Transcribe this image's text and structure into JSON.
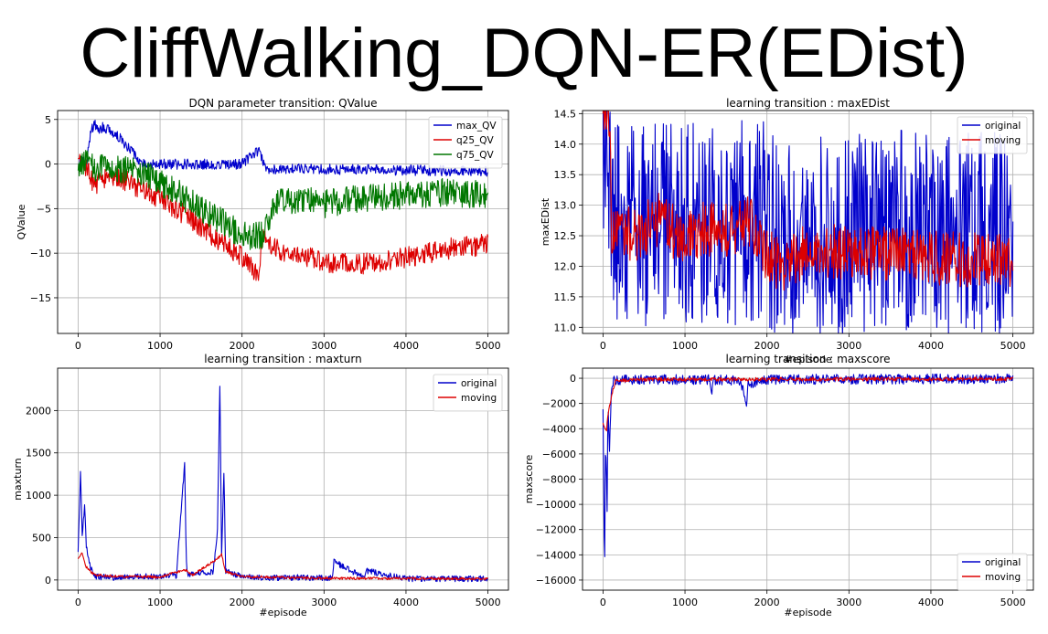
{
  "page": {
    "title": "CliffWalking_DQN-ER(EDist)"
  },
  "chart_data": [
    {
      "type": "line",
      "title": "DQN parameter transition: QValue",
      "xlabel": "#episode",
      "ylabel": "QValue",
      "xlim": [
        -250,
        5250
      ],
      "ylim": [
        -19,
        6
      ],
      "xticks": [
        0,
        1000,
        2000,
        3000,
        4000,
        5000
      ],
      "yticks": [
        5,
        0,
        -5,
        -10,
        -15
      ],
      "ytick_labels": [
        "5",
        "0",
        "−5",
        "−10",
        "−15"
      ],
      "grid": true,
      "legend_position": "top-right",
      "series": [
        {
          "name": "max_QV",
          "color": "#0000cc",
          "x": [
            0,
            50,
            100,
            150,
            200,
            250,
            300,
            400,
            500,
            600,
            700,
            750,
            800,
            1000,
            1500,
            2000,
            2200,
            2250,
            2300,
            3000,
            4000,
            5000
          ],
          "y": [
            0,
            0.4,
            0,
            3.5,
            4.5,
            3.8,
            4.2,
            3.6,
            3.0,
            2.0,
            1.0,
            0.5,
            0,
            0,
            0,
            0,
            1.5,
            0.3,
            -0.5,
            -0.6,
            -0.7,
            -0.8
          ],
          "noise": 0.6
        },
        {
          "name": "q25_QV",
          "color": "#dd0000",
          "x": [
            0,
            100,
            200,
            300,
            500,
            700,
            1000,
            1500,
            2000,
            2200,
            2250,
            2400,
            3000,
            3500,
            4000,
            4500,
            5000
          ],
          "y": [
            0,
            -0.5,
            -2.5,
            -1.5,
            -1.5,
            -2.5,
            -3.8,
            -7.0,
            -10.5,
            -12.5,
            -8.5,
            -9.5,
            -11.0,
            -11.2,
            -10.5,
            -9.5,
            -9.0
          ],
          "noise": 1.2
        },
        {
          "name": "q75_QV",
          "color": "#007700",
          "x": [
            0,
            100,
            200,
            400,
            700,
            1000,
            1500,
            2000,
            2250,
            2400,
            2700,
            3000,
            3500,
            4000,
            4500,
            5000
          ],
          "y": [
            0,
            0.2,
            -0.5,
            -0.5,
            -0.8,
            -2.0,
            -5.0,
            -8.0,
            -8.0,
            -4.5,
            -4.0,
            -4.5,
            -3.8,
            -3.5,
            -3.2,
            -3.5
          ],
          "noise": 1.6
        }
      ]
    },
    {
      "type": "line",
      "title": "learning transition : maxEDist",
      "xlabel": "#episode",
      "ylabel": "maxEDist",
      "xlim": [
        -250,
        5250
      ],
      "ylim": [
        10.9,
        14.55
      ],
      "xticks": [
        0,
        1000,
        2000,
        3000,
        4000,
        5000
      ],
      "yticks": [
        14.5,
        14.0,
        13.5,
        13.0,
        12.5,
        12.0,
        11.5,
        11.0
      ],
      "ytick_labels": [
        "14.5",
        "14.0",
        "13.5",
        "13.0",
        "12.5",
        "12.0",
        "11.5",
        "11.0"
      ],
      "grid": true,
      "legend_position": "top-right",
      "series": [
        {
          "name": "original",
          "color": "#0000cc",
          "x": [
            0,
            100,
            500,
            1000,
            1500,
            2000,
            2100,
            2250,
            2600,
            3000,
            3500,
            4000,
            4500,
            5000
          ],
          "y": [
            14.4,
            12.7,
            12.7,
            12.7,
            12.7,
            12.7,
            12.6,
            12.5,
            12.5,
            12.5,
            12.6,
            12.5,
            12.5,
            12.5
          ],
          "noise": 1.7
        },
        {
          "name": "moving",
          "color": "#dd0000",
          "x": [
            0,
            90,
            100,
            200,
            400,
            700,
            900,
            1200,
            1500,
            1800,
            2000,
            2200,
            2500,
            3000,
            3500,
            4000,
            4500,
            5000
          ],
          "y": [
            14.4,
            14.4,
            12.4,
            12.6,
            12.5,
            12.8,
            12.5,
            12.6,
            12.6,
            12.7,
            12.2,
            12.0,
            12.3,
            12.2,
            12.2,
            12.15,
            12.1,
            12.1
          ],
          "noise": 0.45
        }
      ]
    },
    {
      "type": "line",
      "title": "learning transition : maxturn",
      "xlabel": "#episode",
      "ylabel": "maxturn",
      "xlim": [
        -250,
        5250
      ],
      "ylim": [
        -120,
        2500
      ],
      "xticks": [
        0,
        1000,
        2000,
        3000,
        4000,
        5000
      ],
      "yticks": [
        2000,
        1500,
        1000,
        500,
        0
      ],
      "ytick_labels": [
        "2000",
        "1500",
        "1000",
        "500",
        "0"
      ],
      "grid": true,
      "legend_position": "top-right",
      "series": [
        {
          "name": "original",
          "color": "#0000cc",
          "x": [
            0,
            30,
            50,
            80,
            100,
            150,
            200,
            400,
            800,
            1200,
            1300,
            1320,
            1340,
            1500,
            1650,
            1700,
            1730,
            1750,
            1780,
            1800,
            2000,
            2300,
            2600,
            3100,
            3120,
            3500,
            3520,
            4000,
            5000
          ],
          "y": [
            300,
            1310,
            500,
            900,
            400,
            150,
            40,
            30,
            40,
            50,
            1390,
            200,
            60,
            80,
            100,
            600,
            2380,
            300,
            1300,
            100,
            40,
            20,
            30,
            20,
            220,
            20,
            110,
            15,
            15
          ],
          "noise": 35
        },
        {
          "name": "moving",
          "color": "#dd0000",
          "x": [
            0,
            50,
            100,
            200,
            500,
            1000,
            1300,
            1400,
            1700,
            1750,
            1800,
            2000,
            3000,
            5000
          ],
          "y": [
            250,
            320,
            150,
            60,
            40,
            35,
            120,
            60,
            250,
            300,
            100,
            40,
            20,
            15
          ],
          "noise": 15
        }
      ]
    },
    {
      "type": "line",
      "title": "learning transition : maxscore",
      "xlabel": "#episode",
      "ylabel": "maxscore",
      "xlim": [
        -250,
        5250
      ],
      "ylim": [
        -16800,
        800
      ],
      "xticks": [
        0,
        1000,
        2000,
        3000,
        4000,
        5000
      ],
      "yticks": [
        0,
        -2000,
        -4000,
        -6000,
        -8000,
        -10000,
        -12000,
        -14000,
        -16000
      ],
      "ytick_labels": [
        "0",
        "−2000",
        "−4000",
        "−6000",
        "−8000",
        "−10000",
        "−12000",
        "−14000",
        "−16000"
      ],
      "grid": true,
      "legend_position": "bottom-right",
      "series": [
        {
          "name": "original",
          "color": "#0000cc",
          "x": [
            0,
            20,
            30,
            50,
            60,
            80,
            100,
            120,
            150,
            500,
            1000,
            1300,
            1320,
            1350,
            1600,
            1700,
            1750,
            1770,
            1800,
            2000,
            3000,
            4000,
            5000
          ],
          "y": [
            -2500,
            -16300,
            -4000,
            -10700,
            -1500,
            -5800,
            -1200,
            -300,
            -150,
            -100,
            -100,
            -120,
            -1300,
            -150,
            -150,
            -700,
            -2200,
            -400,
            -500,
            -100,
            -80,
            -60,
            -50
          ],
          "noise": 400
        },
        {
          "name": "moving",
          "color": "#dd0000",
          "x": [
            0,
            40,
            60,
            100,
            150,
            500,
            1000,
            2000,
            3000,
            5000
          ],
          "y": [
            -3500,
            -4200,
            -3000,
            -1500,
            -200,
            -100,
            -100,
            -90,
            -70,
            -50
          ],
          "noise": 150
        }
      ]
    }
  ]
}
